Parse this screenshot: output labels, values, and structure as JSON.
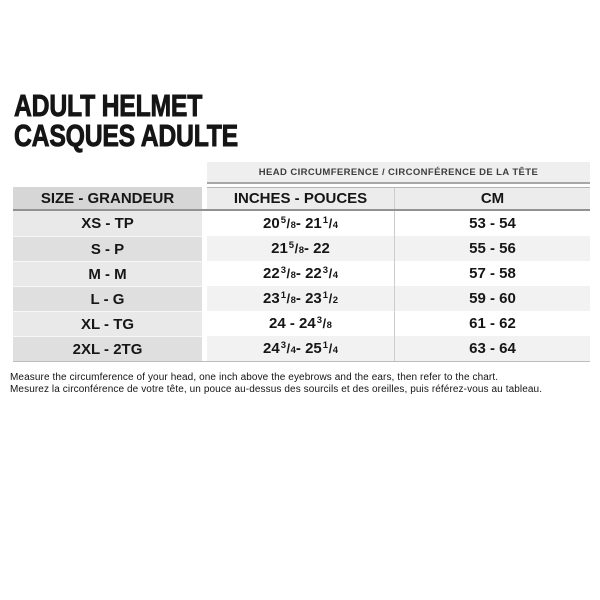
{
  "title": {
    "line1": "ADULT HELMET",
    "line2": "CASQUES ADULTE"
  },
  "table": {
    "span_header": "HEAD CIRCUMFERENCE / CIRCONFÉRENCE DE LA TÊTE",
    "columns": [
      {
        "label": "SIZE - GRANDEUR"
      },
      {
        "label": "INCHES - POUCES"
      },
      {
        "label": "CM"
      }
    ],
    "rows": [
      {
        "size": "XS - TP",
        "inches": "20 5/8 - 21 1/4",
        "cm": "53 - 54"
      },
      {
        "size": "S - P",
        "inches": "21 5/8 - 22",
        "cm": "55 - 56"
      },
      {
        "size": "M - M",
        "inches": "22 3/8 - 22 3/4",
        "cm": "57 - 58"
      },
      {
        "size": "L - G",
        "inches": "23 1/8 - 23 1/2",
        "cm": "59 - 60"
      },
      {
        "size": "XL - TG",
        "inches": "24 - 24 3/8",
        "cm": "61 - 62"
      },
      {
        "size": "2XL - 2TG",
        "inches": "24 3/4 - 25 1/4",
        "cm": "63 - 64"
      }
    ]
  },
  "footer": {
    "line1": "Measure the circumference of your head, one inch above the eyebrows and the ears, then refer to the chart.",
    "line2": "Mesurez la circonférence de votre tête, un pouce au-dessus des sourcils et des oreilles, puis référez-vous au tableau."
  },
  "colors": {
    "text": "#151515",
    "band_bg": "#efefef",
    "band_rule": "#a8a8a8",
    "header_size_bg": "#d6d6d6",
    "header_data_bg": "#ececec",
    "header_rule": "#929292",
    "size_row_odd": "#e9e9e9",
    "size_row_even": "#dfdfdf",
    "data_row_odd": "#ffffff",
    "data_row_even": "#f2f2f2",
    "column_divider": "#cdcdcd",
    "table_bottom_rule": "#bdbdbd"
  }
}
